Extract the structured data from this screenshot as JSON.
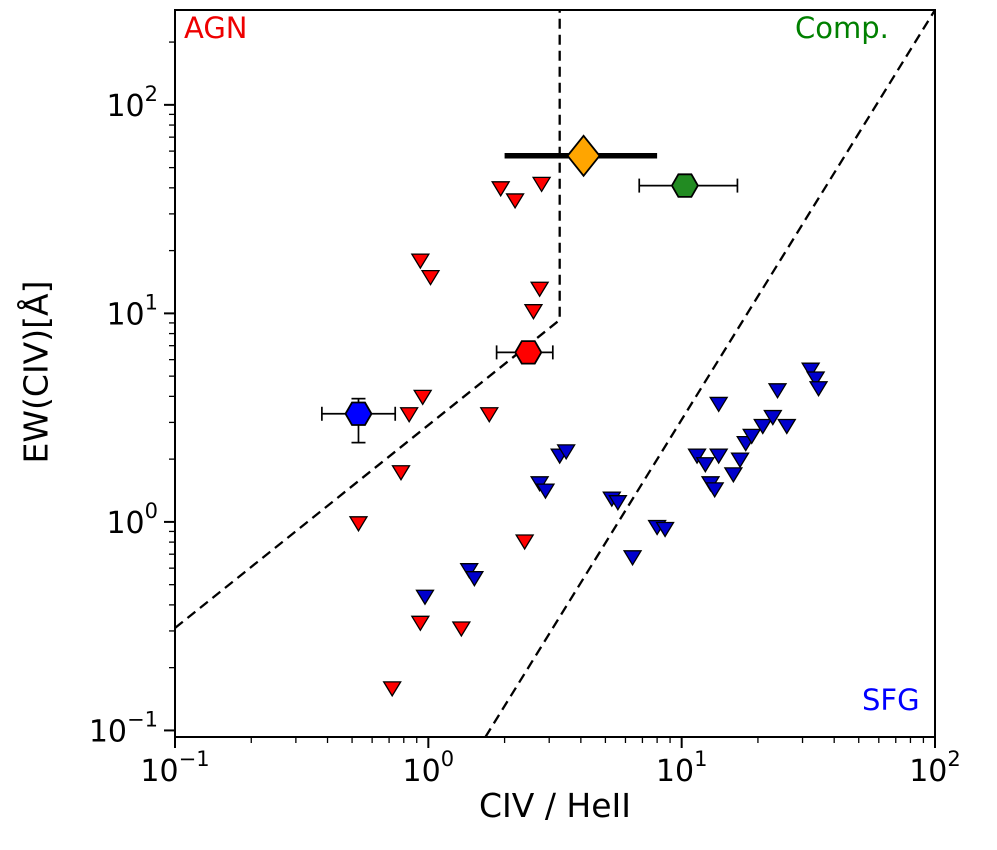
{
  "figure": {
    "background": "#ffffff",
    "axis_color": "#000000"
  },
  "axes": {
    "xlabel": "CIV / HeII",
    "ylabel": "EW(CIV)[Å]",
    "x_scale": "log",
    "y_scale": "log",
    "xlim": [
      0.1,
      100
    ],
    "ylim": [
      0.093,
      285
    ],
    "x_major_tick_exponents": [
      -1,
      0,
      1,
      2
    ],
    "y_major_tick_exponents": [
      -1,
      0,
      1,
      2
    ],
    "grid": false,
    "legend": "none"
  },
  "annotations": {
    "agn": {
      "text": "AGN",
      "color": "#ee0000"
    },
    "comp": {
      "text": "Comp.",
      "color": "#008000"
    },
    "sfg": {
      "text": "SFG",
      "color": "#0000ff"
    }
  },
  "chart_data": {
    "type": "scatter",
    "title": "",
    "xlabel": "CIV / HeII",
    "ylabel": "EW(CIV)[Å]",
    "x_scale": "log",
    "y_scale": "log",
    "xlim": [
      0.1,
      100
    ],
    "ylim": [
      0.093,
      285
    ],
    "grid": false,
    "series": [
      {
        "name": "agn-upper-limits",
        "marker": "triangle-down",
        "fill": "#ff0000",
        "edge": "#000000",
        "points": [
          [
            1.93,
            40
          ],
          [
            2.2,
            35
          ],
          [
            2.8,
            42
          ],
          [
            0.93,
            18
          ],
          [
            1.02,
            15
          ],
          [
            2.75,
            13.2
          ],
          [
            2.6,
            10.3
          ],
          [
            0.95,
            4.0
          ],
          [
            0.84,
            3.3
          ],
          [
            1.74,
            3.3
          ],
          [
            0.78,
            1.74
          ],
          [
            0.53,
            0.99
          ],
          [
            2.4,
            0.81
          ],
          [
            0.93,
            0.33
          ],
          [
            1.35,
            0.31
          ],
          [
            0.72,
            0.16
          ]
        ]
      },
      {
        "name": "sfg-upper-limits",
        "marker": "triangle-down",
        "fill": "#0000cd",
        "edge": "#000000",
        "points": [
          [
            0.97,
            0.44
          ],
          [
            1.45,
            0.59
          ],
          [
            1.52,
            0.54
          ],
          [
            2.75,
            1.54
          ],
          [
            2.9,
            1.42
          ],
          [
            3.3,
            2.09
          ],
          [
            3.5,
            2.19
          ],
          [
            5.3,
            1.3
          ],
          [
            5.6,
            1.25
          ],
          [
            6.4,
            0.68
          ],
          [
            8.0,
            0.95
          ],
          [
            8.6,
            0.93
          ],
          [
            11.5,
            2.09
          ],
          [
            12.4,
            1.9
          ],
          [
            13.0,
            1.54
          ],
          [
            13.5,
            1.44
          ],
          [
            14.0,
            2.09
          ],
          [
            14.0,
            3.7
          ],
          [
            16.0,
            1.7
          ],
          [
            17.0,
            2.0
          ],
          [
            17.9,
            2.4
          ],
          [
            18.9,
            2.6
          ],
          [
            20.9,
            2.9
          ],
          [
            22.9,
            3.2
          ],
          [
            23.9,
            4.3
          ],
          [
            26.0,
            2.9
          ],
          [
            32.3,
            5.4
          ],
          [
            33.8,
            4.9
          ],
          [
            34.7,
            4.4
          ]
        ]
      },
      {
        "name": "stack-orange-diamond",
        "marker": "diamond",
        "fill": "#ffa500",
        "edge": "#000000",
        "x": 4.1,
        "y": 57,
        "xerr": [
          2.0,
          8.0
        ],
        "err_thick": true
      },
      {
        "name": "stack-green-hexagon",
        "marker": "hexagon",
        "fill": "#228b22",
        "edge": "#000000",
        "x": 10.3,
        "y": 41,
        "xerr": [
          6.8,
          16.6
        ]
      },
      {
        "name": "stack-red-hexagon",
        "marker": "hexagon",
        "fill": "#ff0000",
        "edge": "#000000",
        "x": 2.48,
        "y": 6.5,
        "xerr": [
          1.86,
          3.1
        ]
      },
      {
        "name": "stack-blue-hexagon",
        "marker": "hexagon",
        "fill": "#0000ff",
        "edge": "#000000",
        "x": 0.53,
        "y": 3.3,
        "xerr": [
          0.38,
          0.74
        ],
        "yerr": [
          2.4,
          3.9
        ]
      }
    ],
    "boundary_lines": [
      {
        "name": "agn-comp-boundary",
        "style": "dashed",
        "color": "#000000",
        "points": [
          [
            0.1,
            0.31
          ],
          [
            3.3,
            9.3
          ],
          [
            3.3,
            285
          ]
        ]
      },
      {
        "name": "comp-sfg-boundary",
        "style": "dashed",
        "color": "#000000",
        "points": [
          [
            1.68,
            0.093
          ],
          [
            100,
            285
          ]
        ]
      }
    ]
  }
}
